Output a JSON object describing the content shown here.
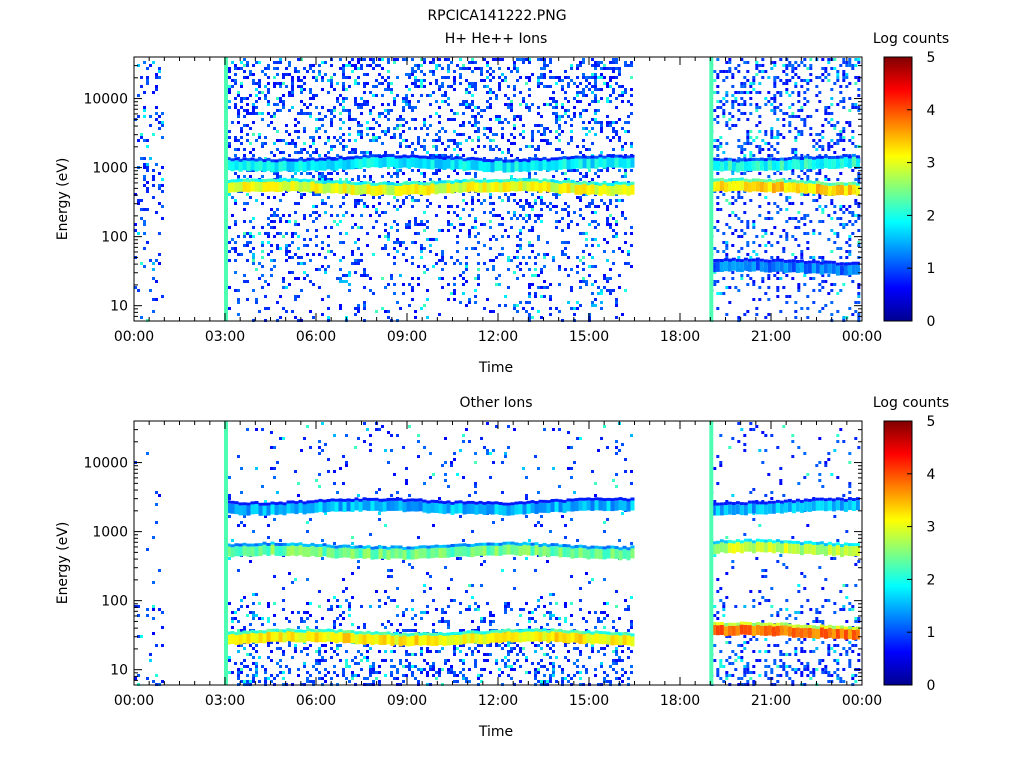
{
  "figure_title": "RPCICA141222.PNG",
  "chart_data": [
    {
      "type": "heatmap",
      "title": "H+ He++ Ions",
      "xlabel": "Time",
      "ylabel": "Energy (eV)",
      "x_ticks": [
        "00:00",
        "03:00",
        "06:00",
        "09:00",
        "12:00",
        "15:00",
        "18:00",
        "21:00",
        "00:00"
      ],
      "x_range_hours": [
        0,
        24
      ],
      "y_scale": "log",
      "y_ticks": [
        "10",
        "100",
        "1000",
        "10000"
      ],
      "y_range": [
        6,
        40000
      ],
      "colorbar": {
        "label": "Log counts",
        "min": 0,
        "max": 5,
        "ticks": [
          "0",
          "1",
          "2",
          "3",
          "4",
          "5"
        ]
      },
      "data_gaps_hours": [
        [
          0.9,
          3.0
        ],
        [
          16.4,
          19.0
        ]
      ],
      "energy_bands": [
        {
          "energy_ev": 500,
          "log_counts": 3.0,
          "start_hour": 3.05,
          "end_hour": 16.4
        },
        {
          "energy_ev": 1100,
          "log_counts": 1.8,
          "start_hour": 3.05,
          "end_hour": 16.4
        },
        {
          "energy_ev": 500,
          "log_counts": 3.3,
          "start_hour": 19.05,
          "end_hour": 23.8
        },
        {
          "energy_ev": 1100,
          "log_counts": 2.0,
          "start_hour": 19.05,
          "end_hour": 23.8
        },
        {
          "energy_ev": 35,
          "log_counts": 1.2,
          "start_hour": 19.05,
          "end_hour": 23.8
        }
      ]
    },
    {
      "type": "heatmap",
      "title": "Other Ions",
      "xlabel": "Time",
      "ylabel": "Energy (eV)",
      "x_ticks": [
        "00:00",
        "03:00",
        "06:00",
        "09:00",
        "12:00",
        "15:00",
        "18:00",
        "21:00",
        "00:00"
      ],
      "x_range_hours": [
        0,
        24
      ],
      "y_scale": "log",
      "y_ticks": [
        "10",
        "100",
        "1000",
        "10000"
      ],
      "y_range": [
        6,
        40000
      ],
      "colorbar": {
        "label": "Log counts",
        "min": 0,
        "max": 5,
        "ticks": [
          "0",
          "1",
          "2",
          "3",
          "4",
          "5"
        ]
      },
      "data_gaps_hours": [
        [
          0.9,
          3.0
        ],
        [
          16.4,
          19.0
        ]
      ],
      "energy_bands": [
        {
          "energy_ev": 2200,
          "log_counts": 1.5,
          "start_hour": 3.05,
          "end_hour": 16.4
        },
        {
          "energy_ev": 500,
          "log_counts": 2.4,
          "start_hour": 3.05,
          "end_hour": 16.4
        },
        {
          "energy_ev": 28,
          "log_counts": 3.2,
          "start_hour": 3.05,
          "end_hour": 16.4
        },
        {
          "energy_ev": 2200,
          "log_counts": 1.5,
          "start_hour": 19.05,
          "end_hour": 23.8
        },
        {
          "energy_ev": 550,
          "log_counts": 2.8,
          "start_hour": 19.05,
          "end_hour": 23.8
        },
        {
          "energy_ev": 35,
          "log_counts": 3.8,
          "start_hour": 19.05,
          "end_hour": 23.8
        }
      ]
    }
  ]
}
